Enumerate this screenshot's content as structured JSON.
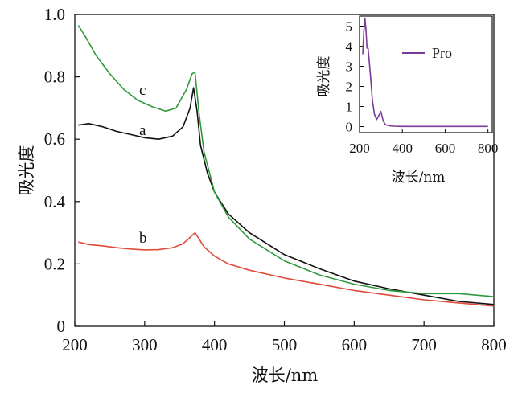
{
  "chart_data": [
    {
      "type": "line",
      "xlabel": "波长/nm",
      "ylabel": "吸光度",
      "xlim": [
        200,
        800
      ],
      "ylim": [
        0,
        1.0
      ],
      "xticks": [
        "200",
        "300",
        "400",
        "500",
        "600",
        "700",
        "800"
      ],
      "yticks": [
        "0",
        "0.2",
        "0.4",
        "0.6",
        "0.8",
        "1.0"
      ],
      "series": [
        {
          "name": "a",
          "color": "#111111",
          "x": [
            205,
            220,
            240,
            260,
            280,
            300,
            320,
            340,
            355,
            365,
            370,
            375,
            380,
            390,
            400,
            420,
            450,
            500,
            550,
            600,
            650,
            700,
            750,
            800
          ],
          "y": [
            0.645,
            0.65,
            0.64,
            0.625,
            0.615,
            0.605,
            0.6,
            0.61,
            0.64,
            0.7,
            0.765,
            0.69,
            0.58,
            0.49,
            0.43,
            0.36,
            0.3,
            0.23,
            0.185,
            0.145,
            0.12,
            0.1,
            0.08,
            0.07
          ]
        },
        {
          "name": "b",
          "color": "#e04a3a",
          "x": [
            205,
            220,
            240,
            260,
            280,
            300,
            320,
            340,
            355,
            365,
            372,
            378,
            385,
            400,
            420,
            450,
            500,
            550,
            600,
            650,
            700,
            750,
            800
          ],
          "y": [
            0.27,
            0.262,
            0.258,
            0.252,
            0.248,
            0.245,
            0.246,
            0.252,
            0.265,
            0.285,
            0.3,
            0.28,
            0.255,
            0.225,
            0.2,
            0.18,
            0.155,
            0.135,
            0.115,
            0.1,
            0.085,
            0.075,
            0.065
          ]
        },
        {
          "name": "c",
          "color": "#2e9a3a",
          "x": [
            205,
            215,
            230,
            250,
            270,
            290,
            310,
            330,
            345,
            360,
            368,
            372,
            378,
            385,
            400,
            420,
            450,
            500,
            550,
            600,
            650,
            700,
            750,
            800
          ],
          "y": [
            0.965,
            0.93,
            0.87,
            0.81,
            0.76,
            0.725,
            0.705,
            0.69,
            0.7,
            0.76,
            0.81,
            0.815,
            0.68,
            0.56,
            0.43,
            0.35,
            0.28,
            0.21,
            0.165,
            0.135,
            0.115,
            0.105,
            0.105,
            0.095
          ]
        }
      ],
      "annotations": [
        "a",
        "b",
        "c"
      ]
    },
    {
      "type": "line",
      "xlabel": "波长/nm",
      "ylabel": "吸光度",
      "xlim": [
        200,
        820
      ],
      "ylim": [
        -0.3,
        5.5
      ],
      "xticks": [
        "200",
        "400",
        "600",
        "800"
      ],
      "yticks": [
        "0",
        "1",
        "2",
        "3",
        "4",
        "5"
      ],
      "legend": "top-right",
      "series": [
        {
          "name": "Pro",
          "color": "#7b3a96",
          "x": [
            215,
            220,
            225,
            230,
            235,
            240,
            250,
            260,
            270,
            280,
            290,
            300,
            310,
            320,
            340,
            360,
            400,
            500,
            600,
            700,
            800
          ],
          "y": [
            3.6,
            4.7,
            5.4,
            4.8,
            3.9,
            3.9,
            2.7,
            1.3,
            0.6,
            0.35,
            0.55,
            0.75,
            0.3,
            0.1,
            0.04,
            0.02,
            0.01,
            0.01,
            0.01,
            0.01,
            0.01
          ]
        }
      ]
    }
  ]
}
